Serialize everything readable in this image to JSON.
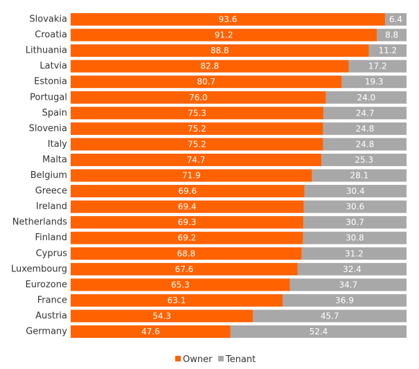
{
  "chart_data": {
    "type": "bar",
    "orientation": "horizontal",
    "stacked": true,
    "categories": [
      "Slovakia",
      "Croatia",
      "Lithuania",
      "Latvia",
      "Estonia",
      "Portugal",
      "Spain",
      "Slovenia",
      "Italy",
      "Malta",
      "Belgium",
      "Greece",
      "Ireland",
      "Netherlands",
      "Finland",
      "Cyprus",
      "Luxembourg",
      "Eurozone",
      "France",
      "Austria",
      "Germany"
    ],
    "series": [
      {
        "name": "Owner",
        "color": "#ff6200",
        "values": [
          93.6,
          91.2,
          88.8,
          82.8,
          80.7,
          76.0,
          75.3,
          75.2,
          75.2,
          74.7,
          71.9,
          69.6,
          69.4,
          69.3,
          69.2,
          68.8,
          67.6,
          65.3,
          63.1,
          54.3,
          47.6
        ]
      },
      {
        "name": "Tenant",
        "color": "#a8a8a8",
        "values": [
          6.4,
          8.8,
          11.2,
          17.2,
          19.3,
          24.0,
          24.7,
          24.8,
          24.8,
          25.3,
          28.1,
          30.4,
          30.6,
          30.7,
          30.8,
          31.2,
          32.4,
          34.7,
          36.9,
          45.7,
          52.4
        ]
      }
    ],
    "xlim": [
      0,
      100
    ],
    "grid": false,
    "legend": "bottom-center",
    "title": "",
    "xlabel": "",
    "ylabel": ""
  }
}
